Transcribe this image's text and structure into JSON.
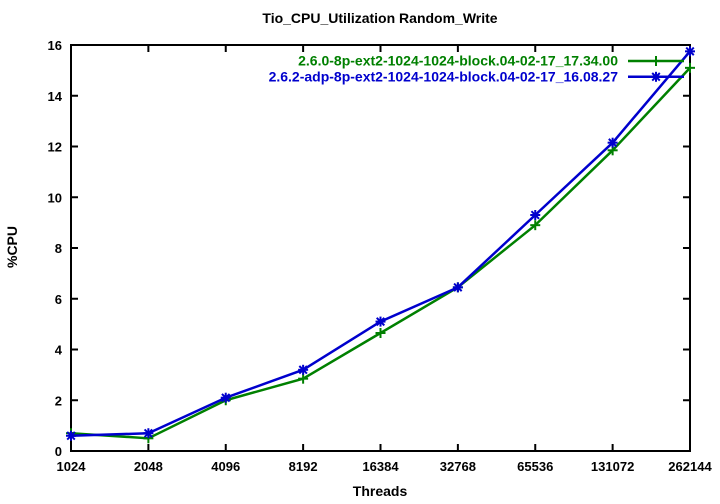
{
  "page": {
    "background": "#ffffff",
    "text_color": "#000000",
    "axis_color": "#000000"
  },
  "chart_data": {
    "type": "line",
    "title": "Tio_CPU_Utilization Random_Write",
    "xlabel": "Threads",
    "ylabel": "%CPU",
    "x_scale": "log2-equal-spacing",
    "categories": [
      "1024",
      "2048",
      "4096",
      "8192",
      "16384",
      "32768",
      "65536",
      "131072",
      "262144"
    ],
    "ylim": [
      0,
      16
    ],
    "ytick_step": 2,
    "yticks": [
      0,
      2,
      4,
      6,
      8,
      10,
      12,
      14,
      16
    ],
    "grid": false,
    "legend_position": "top-right-inside",
    "series": [
      {
        "name": "2.6.0-8p-ext2-1024-1024-block.04-02-17_17.34.00",
        "color": "#008000",
        "marker": "plus",
        "values": [
          0.7,
          0.5,
          2.0,
          2.85,
          4.65,
          6.45,
          8.9,
          11.85,
          15.1
        ]
      },
      {
        "name": "2.6.2-adp-8p-ext2-1024-1024-block.04-02-17_16.08.27",
        "color": "#0000cd",
        "marker": "star",
        "values": [
          0.6,
          0.7,
          2.1,
          3.2,
          5.1,
          6.45,
          9.3,
          12.15,
          15.75
        ]
      }
    ]
  }
}
